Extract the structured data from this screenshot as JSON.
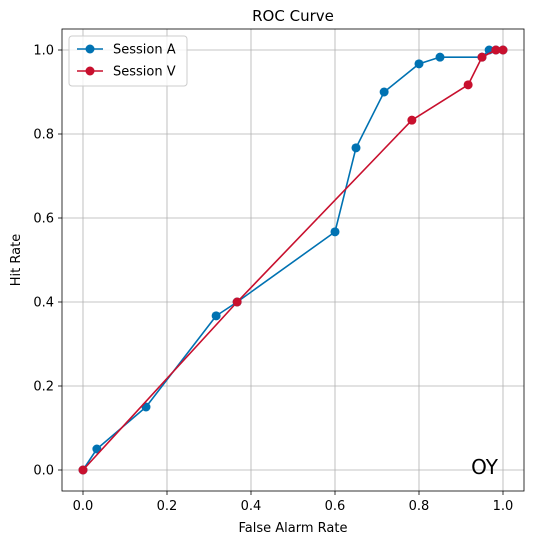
{
  "chart_data": {
    "type": "line",
    "title": "ROC Curve",
    "xlabel": "False Alarm Rate",
    "ylabel": "Hit Rate",
    "xlim": [
      -0.05,
      1.05
    ],
    "ylim": [
      -0.05,
      1.05
    ],
    "xticks": [
      0.0,
      0.2,
      0.4,
      0.6,
      0.8,
      1.0
    ],
    "yticks": [
      0.0,
      0.2,
      0.4,
      0.6,
      0.8,
      1.0
    ],
    "xtick_labels": [
      "0.0",
      "0.2",
      "0.4",
      "0.6",
      "0.8",
      "1.0"
    ],
    "ytick_labels": [
      "0.0",
      "0.2",
      "0.4",
      "0.6",
      "0.8",
      "1.0"
    ],
    "grid": true,
    "legend_position": "top-left",
    "annotation": "OY",
    "series": [
      {
        "name": "Session A",
        "color": "#0072b2",
        "marker": "circle",
        "x": [
          0.0,
          0.033,
          0.15,
          0.317,
          0.367,
          0.6,
          0.65,
          0.717,
          0.8,
          0.85,
          0.95,
          0.967,
          0.983,
          1.0
        ],
        "y": [
          0.0,
          0.05,
          0.15,
          0.367,
          0.4,
          0.567,
          0.767,
          0.9,
          0.967,
          0.983,
          0.983,
          1.0,
          1.0,
          1.0
        ]
      },
      {
        "name": "Session V",
        "color": "#c8102e",
        "marker": "circle",
        "x": [
          0.0,
          0.367,
          0.783,
          0.917,
          0.95,
          0.983,
          1.0
        ],
        "y": [
          0.0,
          0.4,
          0.833,
          0.917,
          0.983,
          1.0,
          1.0
        ]
      }
    ]
  }
}
